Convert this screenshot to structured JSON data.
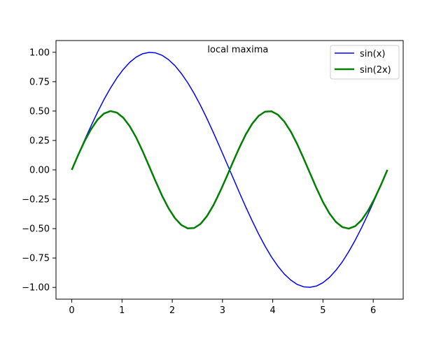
{
  "chart_data": {
    "type": "line",
    "title": "",
    "xlabel": "",
    "ylabel": "",
    "xlim": [
      -0.314,
      6.597
    ],
    "ylim": [
      -1.1,
      1.1
    ],
    "xticks": [
      0,
      1,
      2,
      3,
      4,
      5,
      6
    ],
    "yticks": [
      -1.0,
      -0.75,
      -0.5,
      -0.25,
      0.0,
      0.25,
      0.5,
      0.75,
      1.0
    ],
    "xtick_labels": [
      "0",
      "1",
      "2",
      "3",
      "4",
      "5",
      "6"
    ],
    "ytick_labels": [
      "−1.00",
      "−0.75",
      "−0.50",
      "−0.25",
      "0.00",
      "0.25",
      "0.50",
      "0.75",
      "1.00"
    ],
    "grid": false,
    "legend_position": "top-right",
    "annotations": [
      {
        "text": "local maxima",
        "x": 3.14,
        "y": 1.0
      }
    ],
    "series": [
      {
        "name": "sin(x)",
        "color": "#0000ff",
        "linewidth": "normal",
        "x": [
          0.0,
          0.128,
          0.256,
          0.385,
          0.513,
          0.641,
          0.769,
          0.898,
          1.026,
          1.154,
          1.282,
          1.411,
          1.539,
          1.667,
          1.795,
          1.924,
          2.052,
          2.18,
          2.308,
          2.436,
          2.565,
          2.693,
          2.821,
          2.949,
          3.078,
          3.206,
          3.334,
          3.462,
          3.591,
          3.719,
          3.847,
          3.975,
          4.103,
          4.232,
          4.36,
          4.488,
          4.616,
          4.745,
          4.873,
          5.001,
          5.129,
          5.257,
          5.386,
          5.514,
          5.642,
          5.77,
          5.899,
          6.027,
          6.155,
          6.283
        ],
        "values": [
          0.0,
          0.128,
          0.254,
          0.375,
          0.491,
          0.598,
          0.695,
          0.782,
          0.855,
          0.915,
          0.959,
          0.988,
          0.999,
          0.995,
          0.975,
          0.938,
          0.887,
          0.82,
          0.741,
          0.649,
          0.546,
          0.434,
          0.315,
          0.191,
          0.064,
          -0.064,
          -0.191,
          -0.315,
          -0.434,
          -0.546,
          -0.649,
          -0.741,
          -0.82,
          -0.887,
          -0.938,
          -0.975,
          -0.995,
          -0.999,
          -0.988,
          -0.959,
          -0.915,
          -0.855,
          -0.782,
          -0.695,
          -0.598,
          -0.491,
          -0.375,
          -0.254,
          -0.128,
          0.0
        ]
      },
      {
        "name": "sin(2x)",
        "color": "#008000",
        "linewidth": "thick",
        "x": [
          0.0,
          0.128,
          0.256,
          0.385,
          0.513,
          0.641,
          0.769,
          0.898,
          1.026,
          1.154,
          1.282,
          1.411,
          1.539,
          1.667,
          1.795,
          1.924,
          2.052,
          2.18,
          2.308,
          2.436,
          2.565,
          2.693,
          2.821,
          2.949,
          3.078,
          3.206,
          3.334,
          3.462,
          3.591,
          3.719,
          3.847,
          3.975,
          4.103,
          4.232,
          4.36,
          4.488,
          4.616,
          4.745,
          4.873,
          5.001,
          5.129,
          5.257,
          5.386,
          5.514,
          5.642,
          5.77,
          5.899,
          6.027,
          6.155,
          6.283
        ],
        "values": [
          0.0,
          0.127,
          0.245,
          0.346,
          0.427,
          0.479,
          0.5,
          0.487,
          0.443,
          0.371,
          0.275,
          0.158,
          0.032,
          -0.096,
          -0.218,
          -0.325,
          -0.41,
          -0.469,
          -0.498,
          -0.495,
          -0.459,
          -0.392,
          -0.3,
          -0.187,
          -0.064,
          0.064,
          0.187,
          0.3,
          0.392,
          0.459,
          0.495,
          0.498,
          0.469,
          0.41,
          0.325,
          0.218,
          0.096,
          -0.032,
          -0.158,
          -0.275,
          -0.371,
          -0.443,
          -0.487,
          -0.5,
          -0.479,
          -0.427,
          -0.346,
          -0.245,
          -0.127,
          0.0
        ]
      }
    ]
  }
}
